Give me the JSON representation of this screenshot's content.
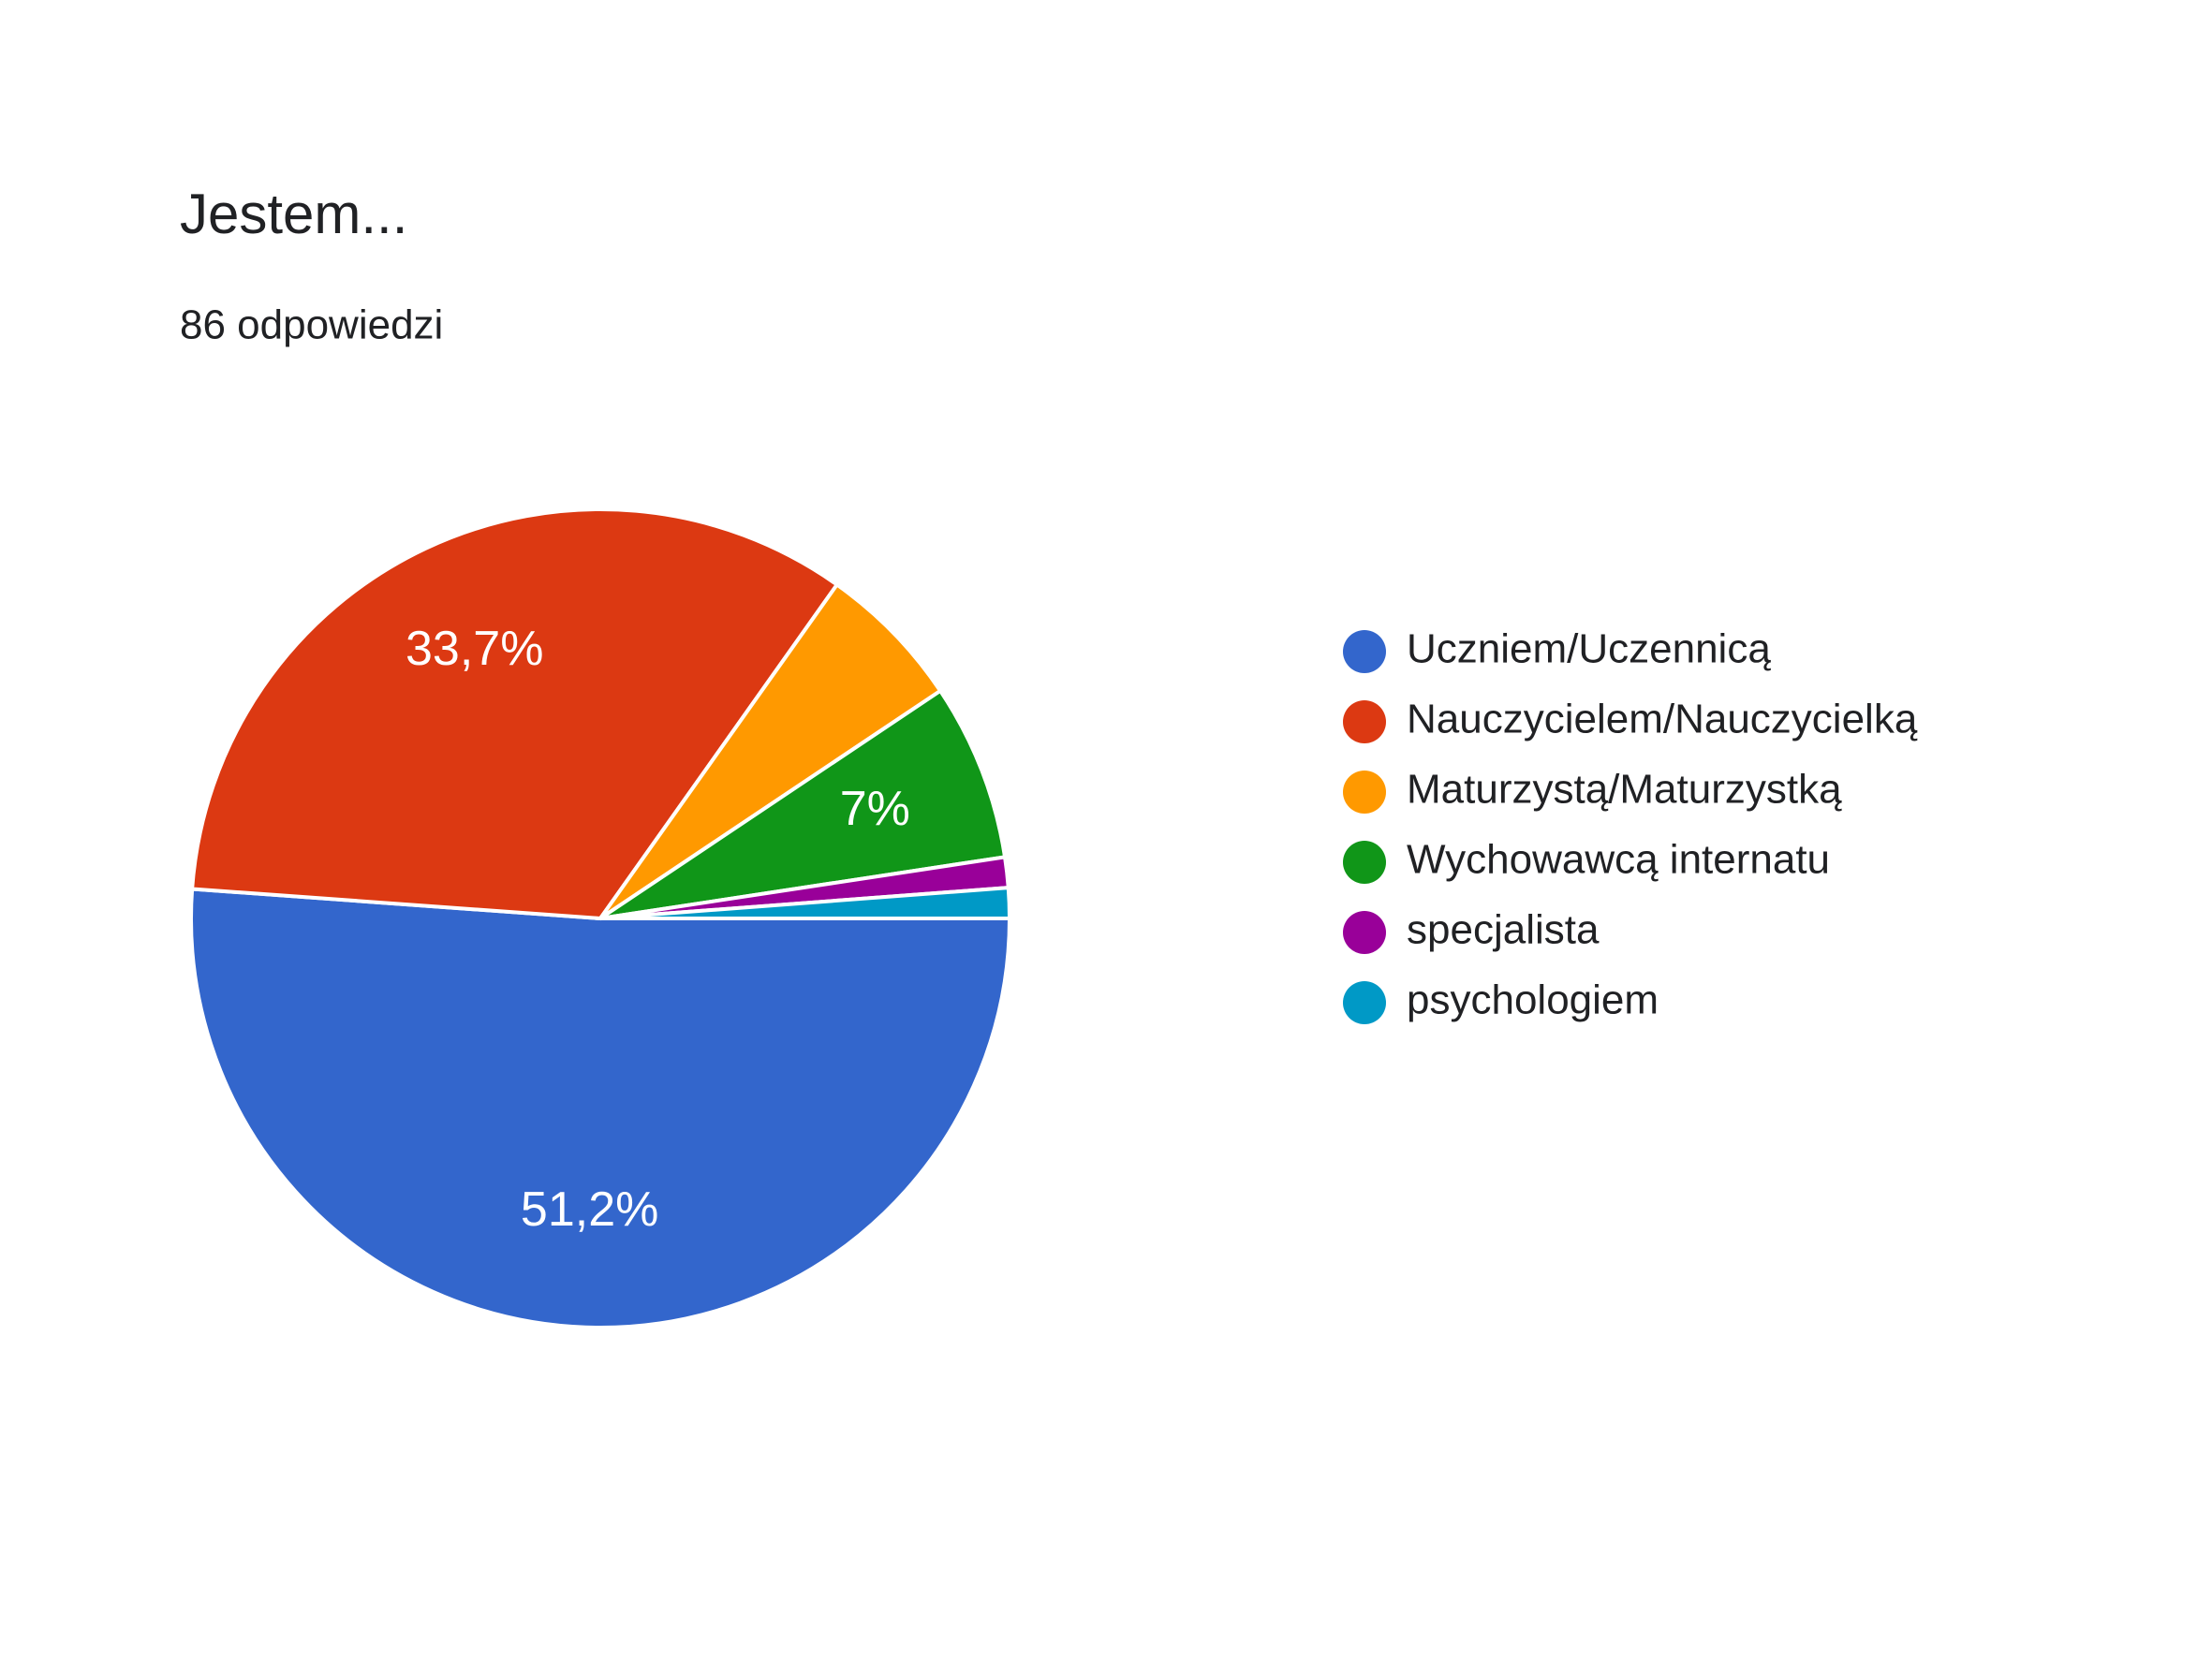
{
  "chart_data": {
    "type": "pie",
    "title": "Jestem...",
    "subtitle": "86 odpowiedzi",
    "categories": [
      "Uczniem/Uczennicą",
      "Nauczycielem/Nauczycielką",
      "Maturzystą/Maturzystką",
      "Wychowawcą internatu",
      "specjalista",
      "psychologiem"
    ],
    "values": [
      51.2,
      33.7,
      5.8,
      7,
      1.2,
      1.2
    ],
    "value_labels": [
      "51,2%",
      "33,7%",
      null,
      "7%",
      null,
      null
    ],
    "colors": [
      "#3366cc",
      "#dc3912",
      "#ff9900",
      "#109618",
      "#990099",
      "#0099c6"
    ],
    "legend": "right"
  }
}
